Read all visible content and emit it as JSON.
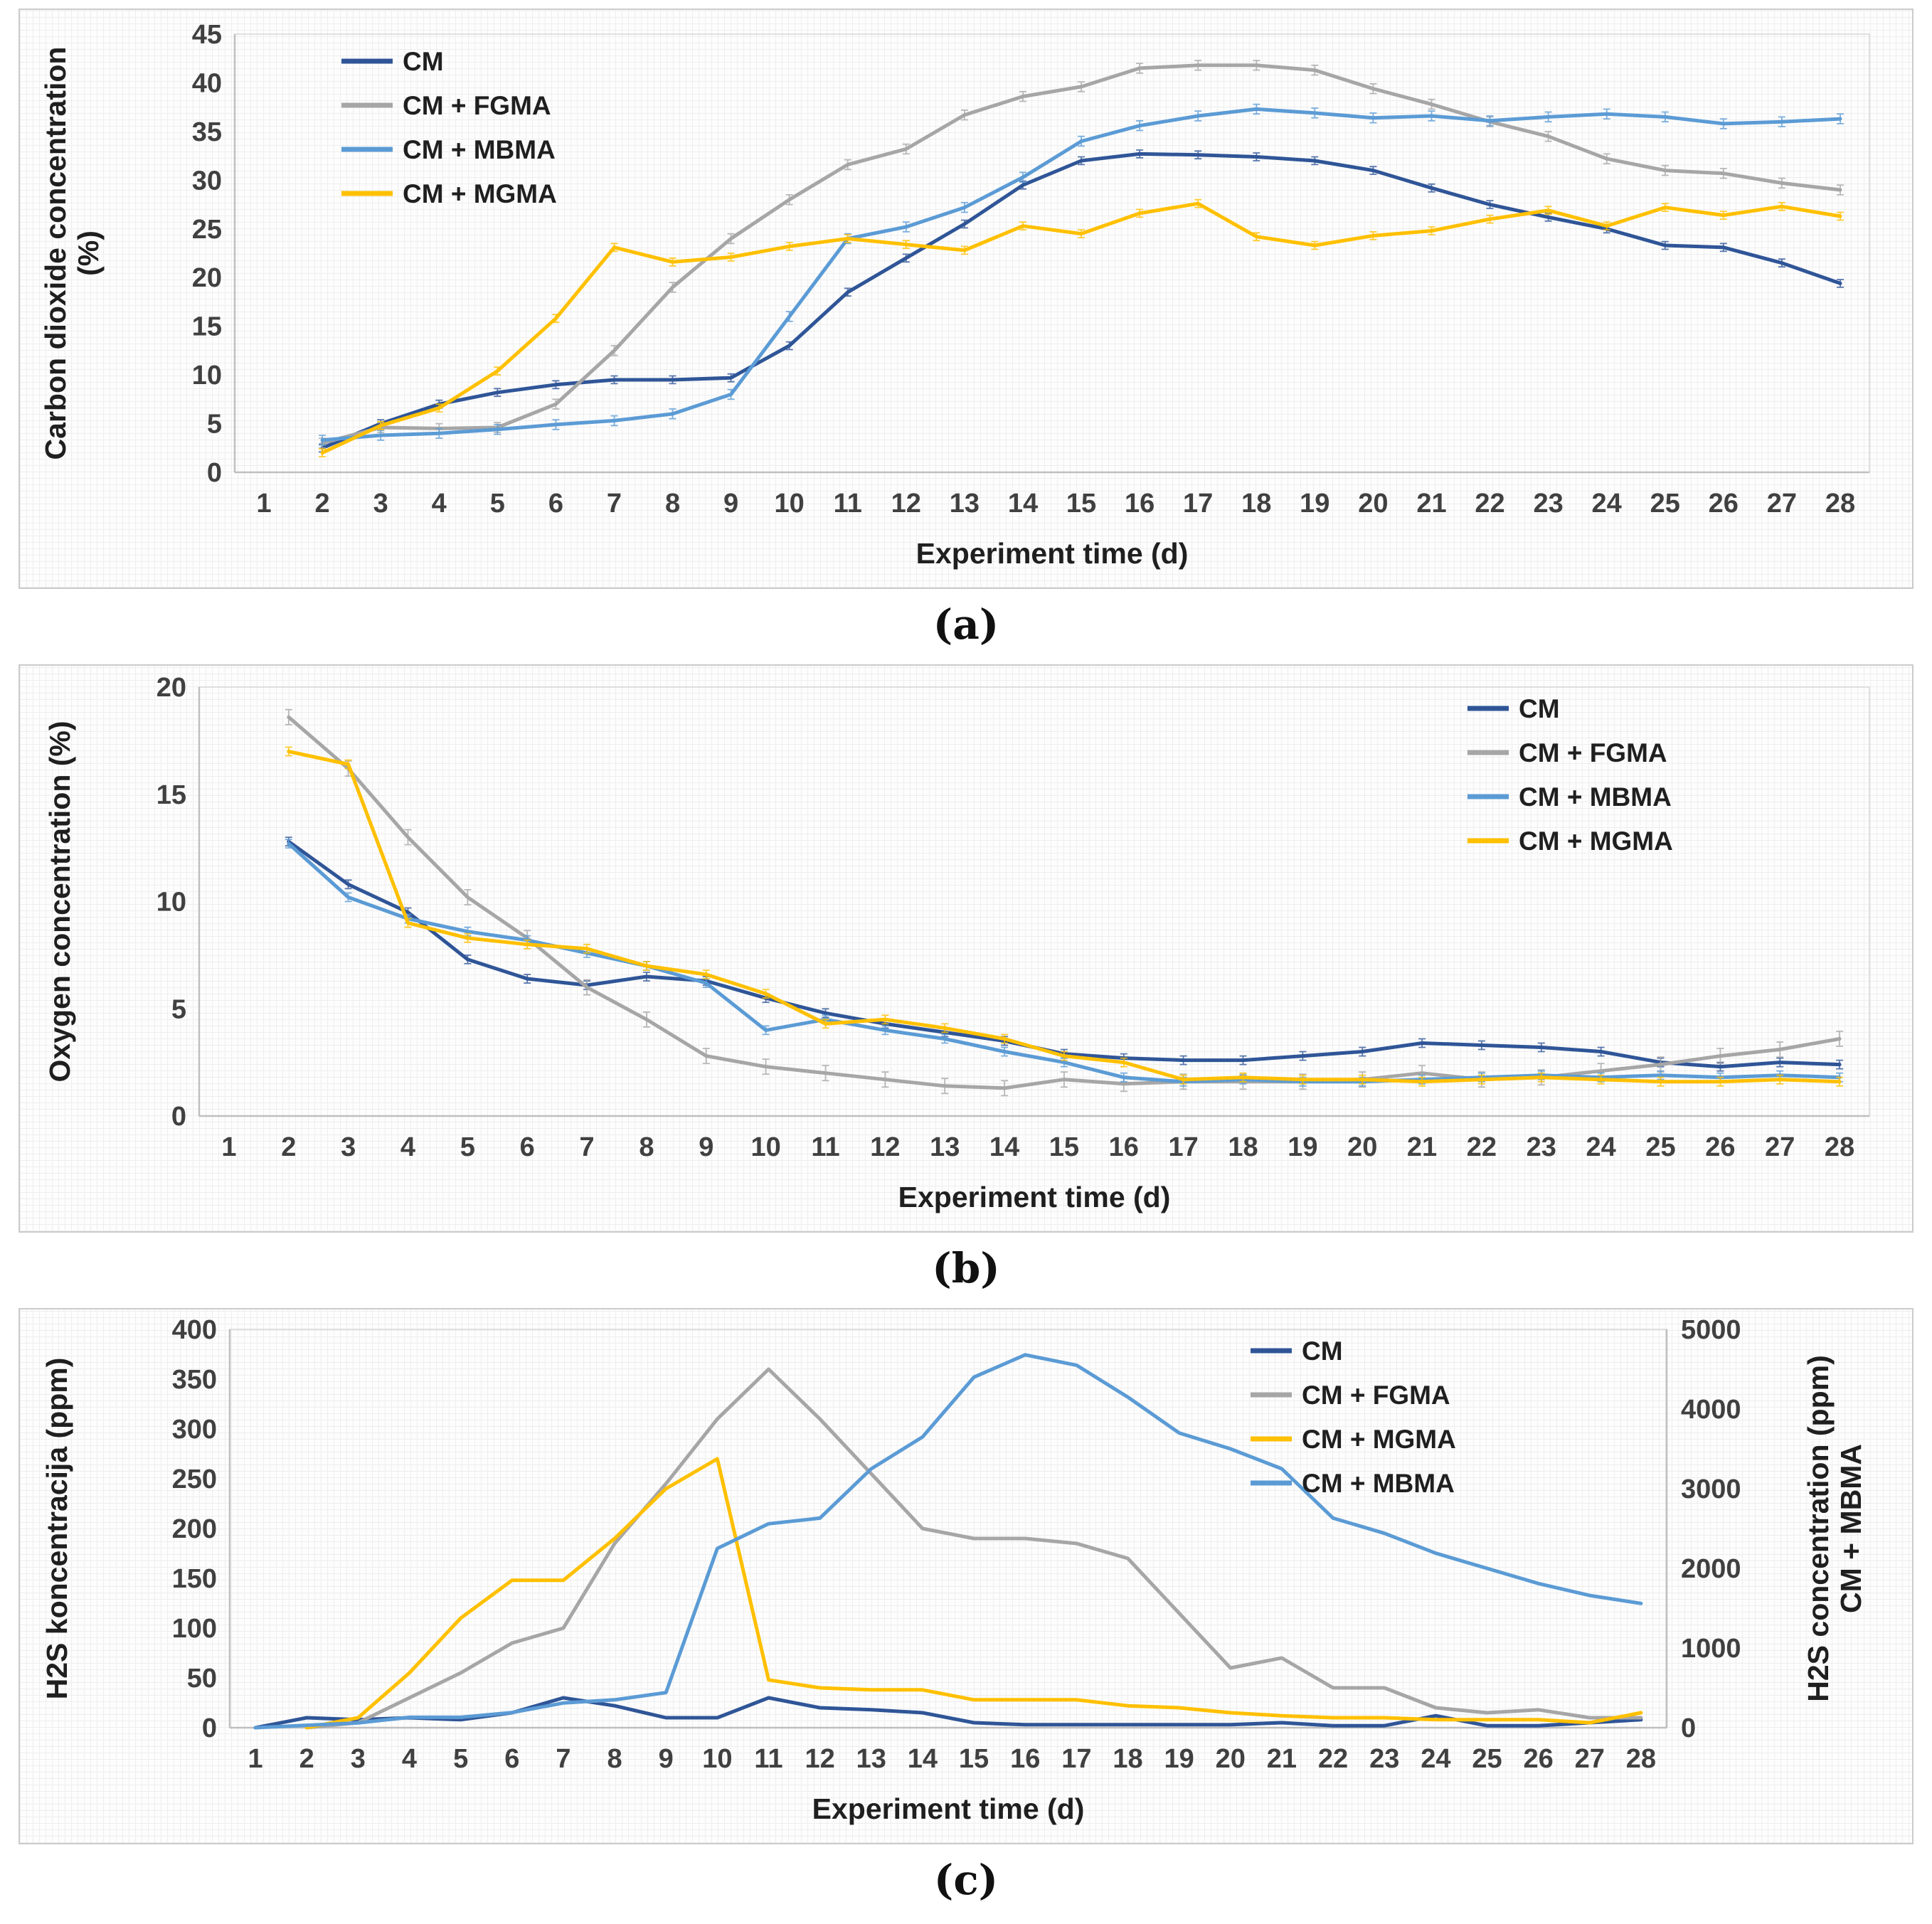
{
  "figure": {
    "captions": {
      "a": "(a)",
      "b": "(b)",
      "c": "(c)"
    }
  },
  "colors": {
    "cm": "#2F5597",
    "fgma": "#A6A6A6",
    "mbma": "#5B9BD5",
    "mgma": "#FFC000",
    "axis_text": "#404040",
    "axis_line": "#BFBFBF"
  },
  "chart_data": [
    {
      "id": "a",
      "type": "line",
      "title": "",
      "xlabel": "Experiment time (d)",
      "ylabel": "Carbon dioxide concentration\n(%)",
      "xlim": [
        0.5,
        28.5
      ],
      "ylim": [
        0,
        45
      ],
      "xticks": [
        1,
        2,
        3,
        4,
        5,
        6,
        7,
        8,
        9,
        10,
        11,
        12,
        13,
        14,
        15,
        16,
        17,
        18,
        19,
        20,
        21,
        22,
        23,
        24,
        25,
        26,
        27,
        28
      ],
      "yticks": [
        0,
        5,
        10,
        15,
        20,
        25,
        30,
        35,
        40,
        45
      ],
      "grid": "fine-mesh",
      "legend_position": "top-left",
      "x": [
        2,
        3,
        4,
        5,
        6,
        7,
        8,
        9,
        10,
        11,
        12,
        13,
        14,
        15,
        16,
        17,
        18,
        19,
        20,
        21,
        22,
        23,
        24,
        25,
        26,
        27,
        28
      ],
      "series": [
        {
          "name": "CM",
          "color": "#2F5597",
          "axis": "left",
          "err": 0.4,
          "values": [
            2.5,
            5,
            7,
            8.2,
            9,
            9.5,
            9.5,
            9.7,
            13,
            18.5,
            22,
            25.5,
            29.5,
            32,
            32.7,
            32.6,
            32.4,
            32,
            31,
            29.2,
            27.5,
            26.2,
            25,
            23.3,
            23.1,
            21.5,
            19.4
          ]
        },
        {
          "name": "CM + FGMA",
          "color": "#A6A6A6",
          "axis": "left",
          "err": 0.5,
          "values": [
            3,
            4.6,
            4.5,
            4.6,
            7,
            12.5,
            19,
            24,
            28,
            31.6,
            33.2,
            36.7,
            38.6,
            39.6,
            41.5,
            41.8,
            41.8,
            41.3,
            39.4,
            37.8,
            36,
            34.5,
            32.2,
            31,
            30.7,
            29.7,
            29
          ]
        },
        {
          "name": "CM + MBMA",
          "color": "#5B9BD5",
          "axis": "left",
          "err": 0.5,
          "values": [
            3.3,
            3.8,
            4,
            4.4,
            4.9,
            5.3,
            6,
            8,
            16,
            24,
            25.2,
            27.2,
            30.3,
            34,
            35.6,
            36.6,
            37.3,
            36.9,
            36.4,
            36.6,
            36.1,
            36.5,
            36.8,
            36.5,
            35.8,
            36,
            36.3
          ]
        },
        {
          "name": "CM + MGMA",
          "color": "#FFC000",
          "axis": "left",
          "err": 0.4,
          "values": [
            2,
            4.8,
            6.6,
            10.4,
            15.8,
            23.1,
            21.6,
            22.1,
            23.2,
            24,
            23.4,
            22.8,
            25.3,
            24.5,
            26.6,
            27.6,
            24.2,
            23.3,
            24.3,
            24.8,
            26,
            26.9,
            25.3,
            27.2,
            26.4,
            27.3,
            26.3
          ]
        }
      ]
    },
    {
      "id": "b",
      "type": "line",
      "title": "",
      "xlabel": "Experiment time (d)",
      "ylabel": "Oxygen concentration (%)",
      "xlim": [
        0.5,
        28.5
      ],
      "ylim": [
        0,
        20
      ],
      "xticks": [
        1,
        2,
        3,
        4,
        5,
        6,
        7,
        8,
        9,
        10,
        11,
        12,
        13,
        14,
        15,
        16,
        17,
        18,
        19,
        20,
        21,
        22,
        23,
        24,
        25,
        26,
        27,
        28
      ],
      "yticks": [
        0,
        5,
        10,
        15,
        20
      ],
      "grid": "fine-mesh",
      "legend_position": "top-right",
      "x": [
        2,
        3,
        4,
        5,
        6,
        7,
        8,
        9,
        10,
        11,
        12,
        13,
        14,
        15,
        16,
        17,
        18,
        19,
        20,
        21,
        22,
        23,
        24,
        25,
        26,
        27,
        28
      ],
      "series": [
        {
          "name": "CM",
          "color": "#2F5597",
          "axis": "left",
          "err": 0.2,
          "values": [
            12.8,
            10.8,
            9.5,
            7.3,
            6.4,
            6.1,
            6.5,
            6.3,
            5.5,
            4.8,
            4.3,
            3.9,
            3.5,
            2.9,
            2.7,
            2.6,
            2.6,
            2.8,
            3.0,
            3.4,
            3.3,
            3.2,
            3.0,
            2.5,
            2.3,
            2.5,
            2.4
          ]
        },
        {
          "name": "CM + FGMA",
          "color": "#A6A6A6",
          "axis": "left",
          "err": 0.35,
          "values": [
            18.6,
            16.2,
            13.0,
            10.2,
            8.3,
            6.0,
            4.5,
            2.8,
            2.3,
            2.0,
            1.7,
            1.4,
            1.3,
            1.7,
            1.5,
            1.6,
            1.6,
            1.6,
            1.7,
            2.0,
            1.7,
            1.8,
            2.1,
            2.4,
            2.8,
            3.1,
            3.6
          ]
        },
        {
          "name": "CM + MBMA",
          "color": "#5B9BD5",
          "axis": "left",
          "err": 0.2,
          "values": [
            12.7,
            10.2,
            9.2,
            8.6,
            8.2,
            7.6,
            7.0,
            6.2,
            4.0,
            4.5,
            4.0,
            3.6,
            3.0,
            2.5,
            1.8,
            1.6,
            1.7,
            1.6,
            1.6,
            1.7,
            1.8,
            1.9,
            1.8,
            1.9,
            1.8,
            1.9,
            1.8
          ]
        },
        {
          "name": "CM + MGMA",
          "color": "#FFC000",
          "axis": "left",
          "err": 0.2,
          "values": [
            17.0,
            16.4,
            9.0,
            8.3,
            8.0,
            7.8,
            7.0,
            6.6,
            5.7,
            4.3,
            4.5,
            4.1,
            3.6,
            2.8,
            2.5,
            1.7,
            1.8,
            1.7,
            1.7,
            1.6,
            1.7,
            1.8,
            1.7,
            1.6,
            1.6,
            1.7,
            1.6
          ]
        }
      ]
    },
    {
      "id": "c",
      "type": "line",
      "title": "",
      "xlabel": "Experiment time (d)",
      "ylabel": "H2S koncentracija (ppm)",
      "y2label": "H2S concentration (ppm)\nCM + MBMA",
      "xlim": [
        0.5,
        28.5
      ],
      "ylim": [
        0,
        400
      ],
      "y2lim": [
        0,
        5000
      ],
      "xticks": [
        1,
        2,
        3,
        4,
        5,
        6,
        7,
        8,
        9,
        10,
        11,
        12,
        13,
        14,
        15,
        16,
        17,
        18,
        19,
        20,
        21,
        22,
        23,
        24,
        25,
        26,
        27,
        28
      ],
      "yticks": [
        0,
        50,
        100,
        150,
        200,
        250,
        300,
        350,
        400
      ],
      "y2ticks": [
        0,
        1000,
        2000,
        3000,
        4000,
        5000
      ],
      "grid": "fine-mesh",
      "legend_position": "top-right",
      "x": [
        1,
        2,
        3,
        4,
        5,
        6,
        7,
        8,
        9,
        10,
        11,
        12,
        13,
        14,
        15,
        16,
        17,
        18,
        19,
        20,
        21,
        22,
        23,
        24,
        25,
        26,
        27,
        28
      ],
      "series": [
        {
          "name": "CM",
          "color": "#2F5597",
          "axis": "left",
          "err": 0,
          "values": [
            0,
            10,
            8,
            10,
            8,
            15,
            30,
            22,
            10,
            10,
            30,
            20,
            18,
            15,
            5,
            3,
            3,
            3,
            3,
            3,
            5,
            2,
            2,
            12,
            2,
            2,
            5,
            8
          ]
        },
        {
          "name": "CM + FGMA",
          "color": "#A6A6A6",
          "axis": "left",
          "err": 0,
          "values": [
            null,
            0,
            5,
            30,
            55,
            85,
            100,
            185,
            245,
            310,
            360,
            310,
            255,
            200,
            190,
            190,
            185,
            170,
            115,
            60,
            70,
            40,
            40,
            20,
            15,
            18,
            10,
            10
          ]
        },
        {
          "name": "CM + MGMA",
          "color": "#FFC000",
          "axis": "left",
          "err": 0,
          "values": [
            null,
            0,
            10,
            55,
            110,
            148,
            148,
            190,
            240,
            270,
            48,
            40,
            38,
            38,
            28,
            28,
            28,
            22,
            20,
            15,
            12,
            10,
            10,
            8,
            8,
            8,
            5,
            15
          ]
        },
        {
          "name": "CM + MBMA",
          "color": "#5B9BD5",
          "axis": "right",
          "err": 0,
          "values": [
            0,
            30,
            60,
            130,
            130,
            190,
            310,
            350,
            440,
            2250,
            2560,
            2630,
            3250,
            3650,
            4400,
            4680,
            4550,
            4150,
            3700,
            3500,
            3250,
            2630,
            2440,
            2190,
            2000,
            1810,
            1660,
            1560
          ]
        }
      ]
    }
  ]
}
